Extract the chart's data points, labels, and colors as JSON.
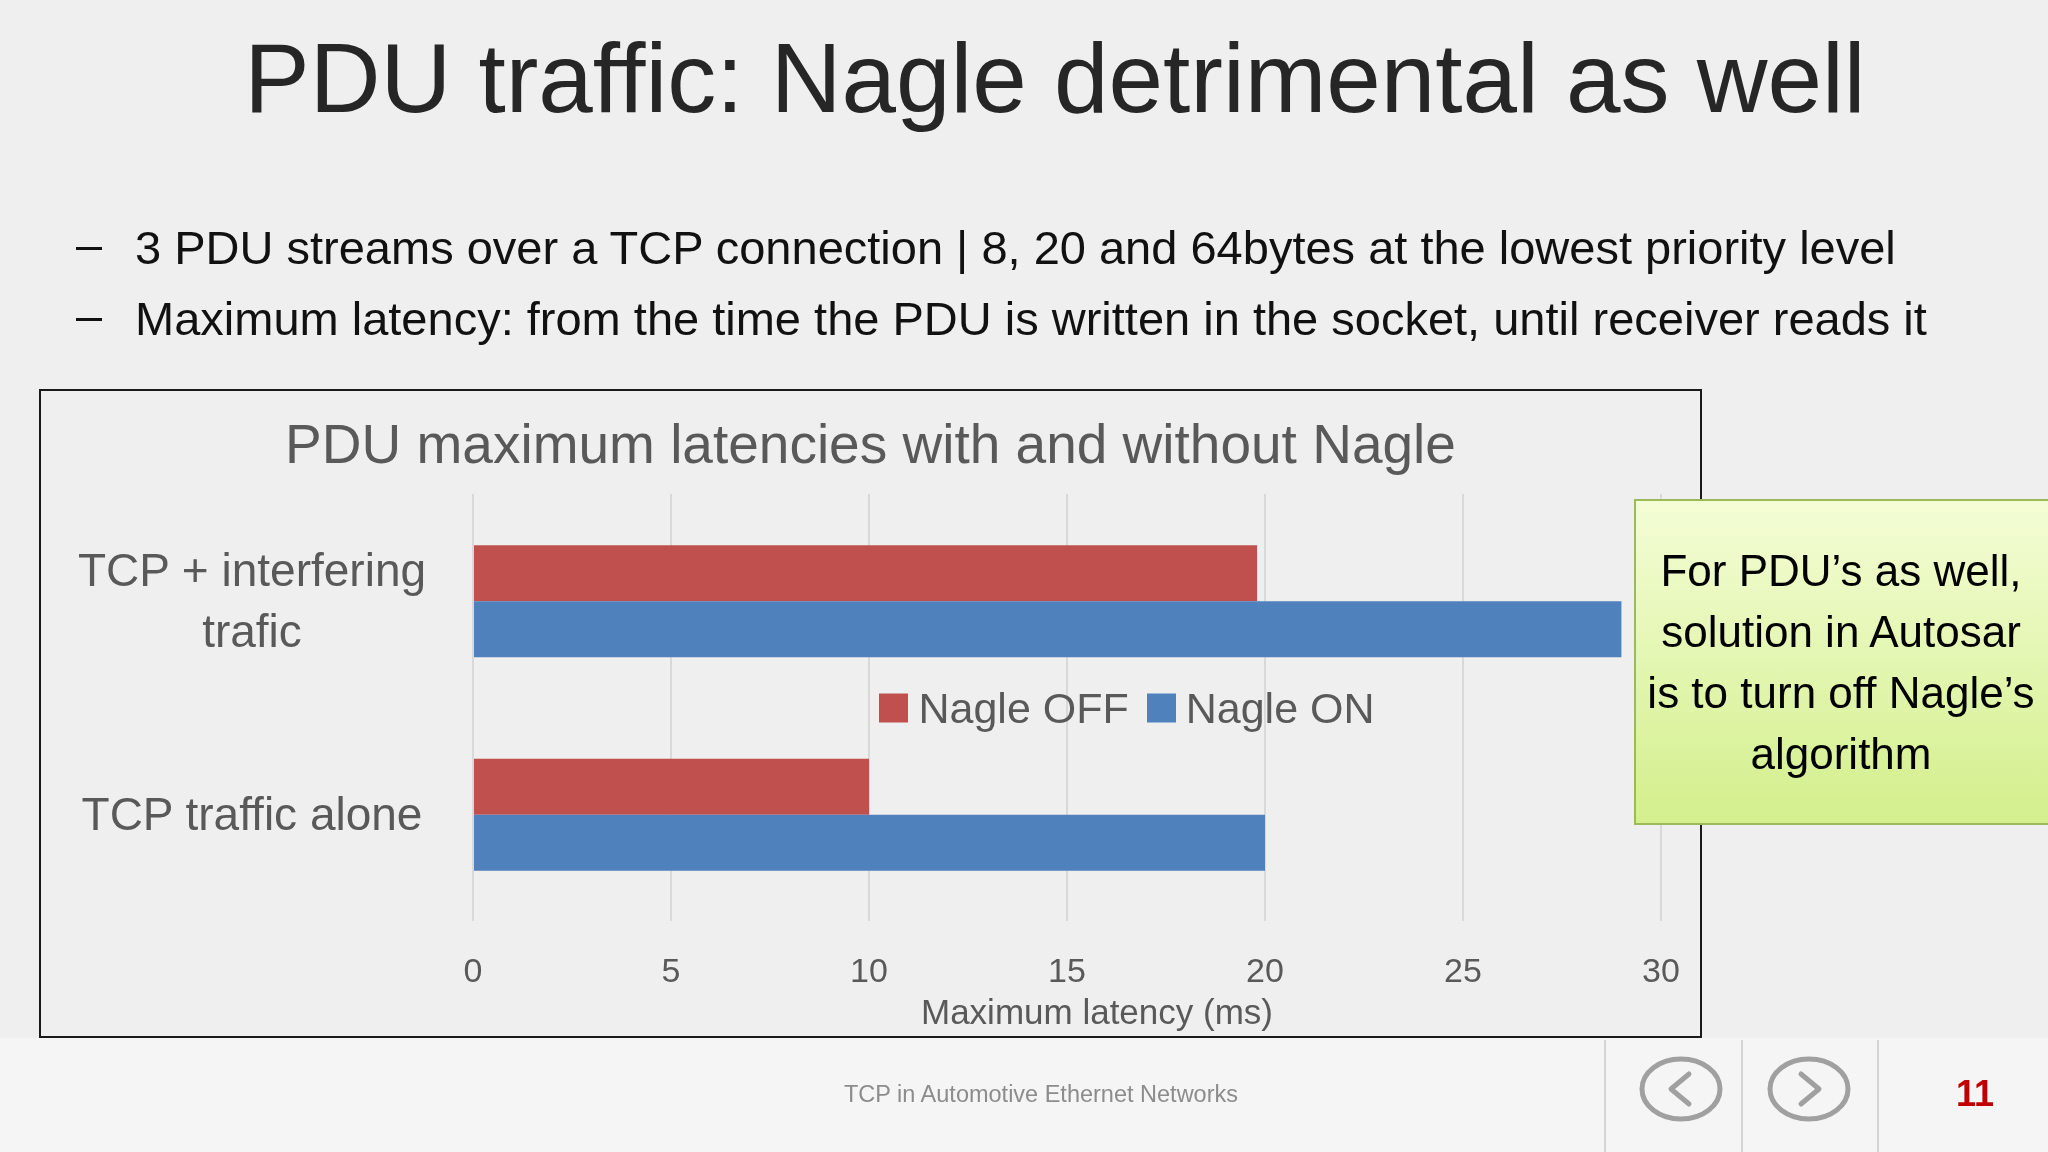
{
  "chart_data": {
    "type": "bar",
    "orientation": "horizontal",
    "title": "PDU traffic: Nagle detrimental as well",
    "subtitle": "PDU maximum latencies with and without Nagle",
    "xlabel": "Maximum latency (ms)",
    "categories": [
      "TCP + interfering trafic",
      "TCP traffic alone"
    ],
    "series": [
      {
        "name": "Nagle OFF",
        "color": "#c0504d",
        "values": [
          19.8,
          10
        ]
      },
      {
        "name": "Nagle ON",
        "color": "#4f81bd",
        "values": [
          29,
          20
        ]
      }
    ],
    "xlim": [
      0,
      30
    ],
    "xticks": [
      0,
      5,
      10,
      15,
      20,
      25,
      30
    ],
    "grid": "x",
    "legend": "center",
    "annotations": [
      "3 PDU streams over a TCP connection | 8, 20 and 64bytes at the lowest priority level",
      "Maximum latency: from the time the PDU is written in the socket, until receiver reads it",
      "For PDU’s as well, solution in Autosar is to turn off Nagle’s algorithm",
      "TCP in Automotive Ethernet Networks",
      "11"
    ]
  }
}
